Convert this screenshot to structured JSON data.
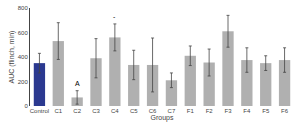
{
  "chart_data": {
    "type": "bar",
    "categories": [
      "Control",
      "C1",
      "C2",
      "C3",
      "C4",
      "C5",
      "C6",
      "C7",
      "F1",
      "F2",
      "F3",
      "F4",
      "F5",
      "F6"
    ],
    "values": [
      350,
      530,
      70,
      390,
      560,
      335,
      335,
      210,
      410,
      355,
      610,
      375,
      350,
      375
    ],
    "errors": [
      80,
      150,
      55,
      160,
      110,
      120,
      220,
      60,
      80,
      110,
      130,
      100,
      60,
      100
    ],
    "colors": [
      "#2b3990",
      "#b0b0b0",
      "#b0b0b0",
      "#b0b0b0",
      "#b0b0b0",
      "#b0b0b0",
      "#b0b0b0",
      "#b0b0b0",
      "#b0b0b0",
      "#b0b0b0",
      "#b0b0b0",
      "#b0b0b0",
      "#b0b0b0",
      "#b0b0b0"
    ],
    "xlabel": "Groups",
    "ylabel": "AUC (flinch, min)",
    "ylim": [
      0,
      800
    ],
    "yticks": [
      0,
      200,
      400,
      600,
      800
    ],
    "annotations": [
      {
        "text": "A",
        "category": "C2"
      },
      {
        "text": "-",
        "category": "C4"
      }
    ],
    "grid": false
  }
}
